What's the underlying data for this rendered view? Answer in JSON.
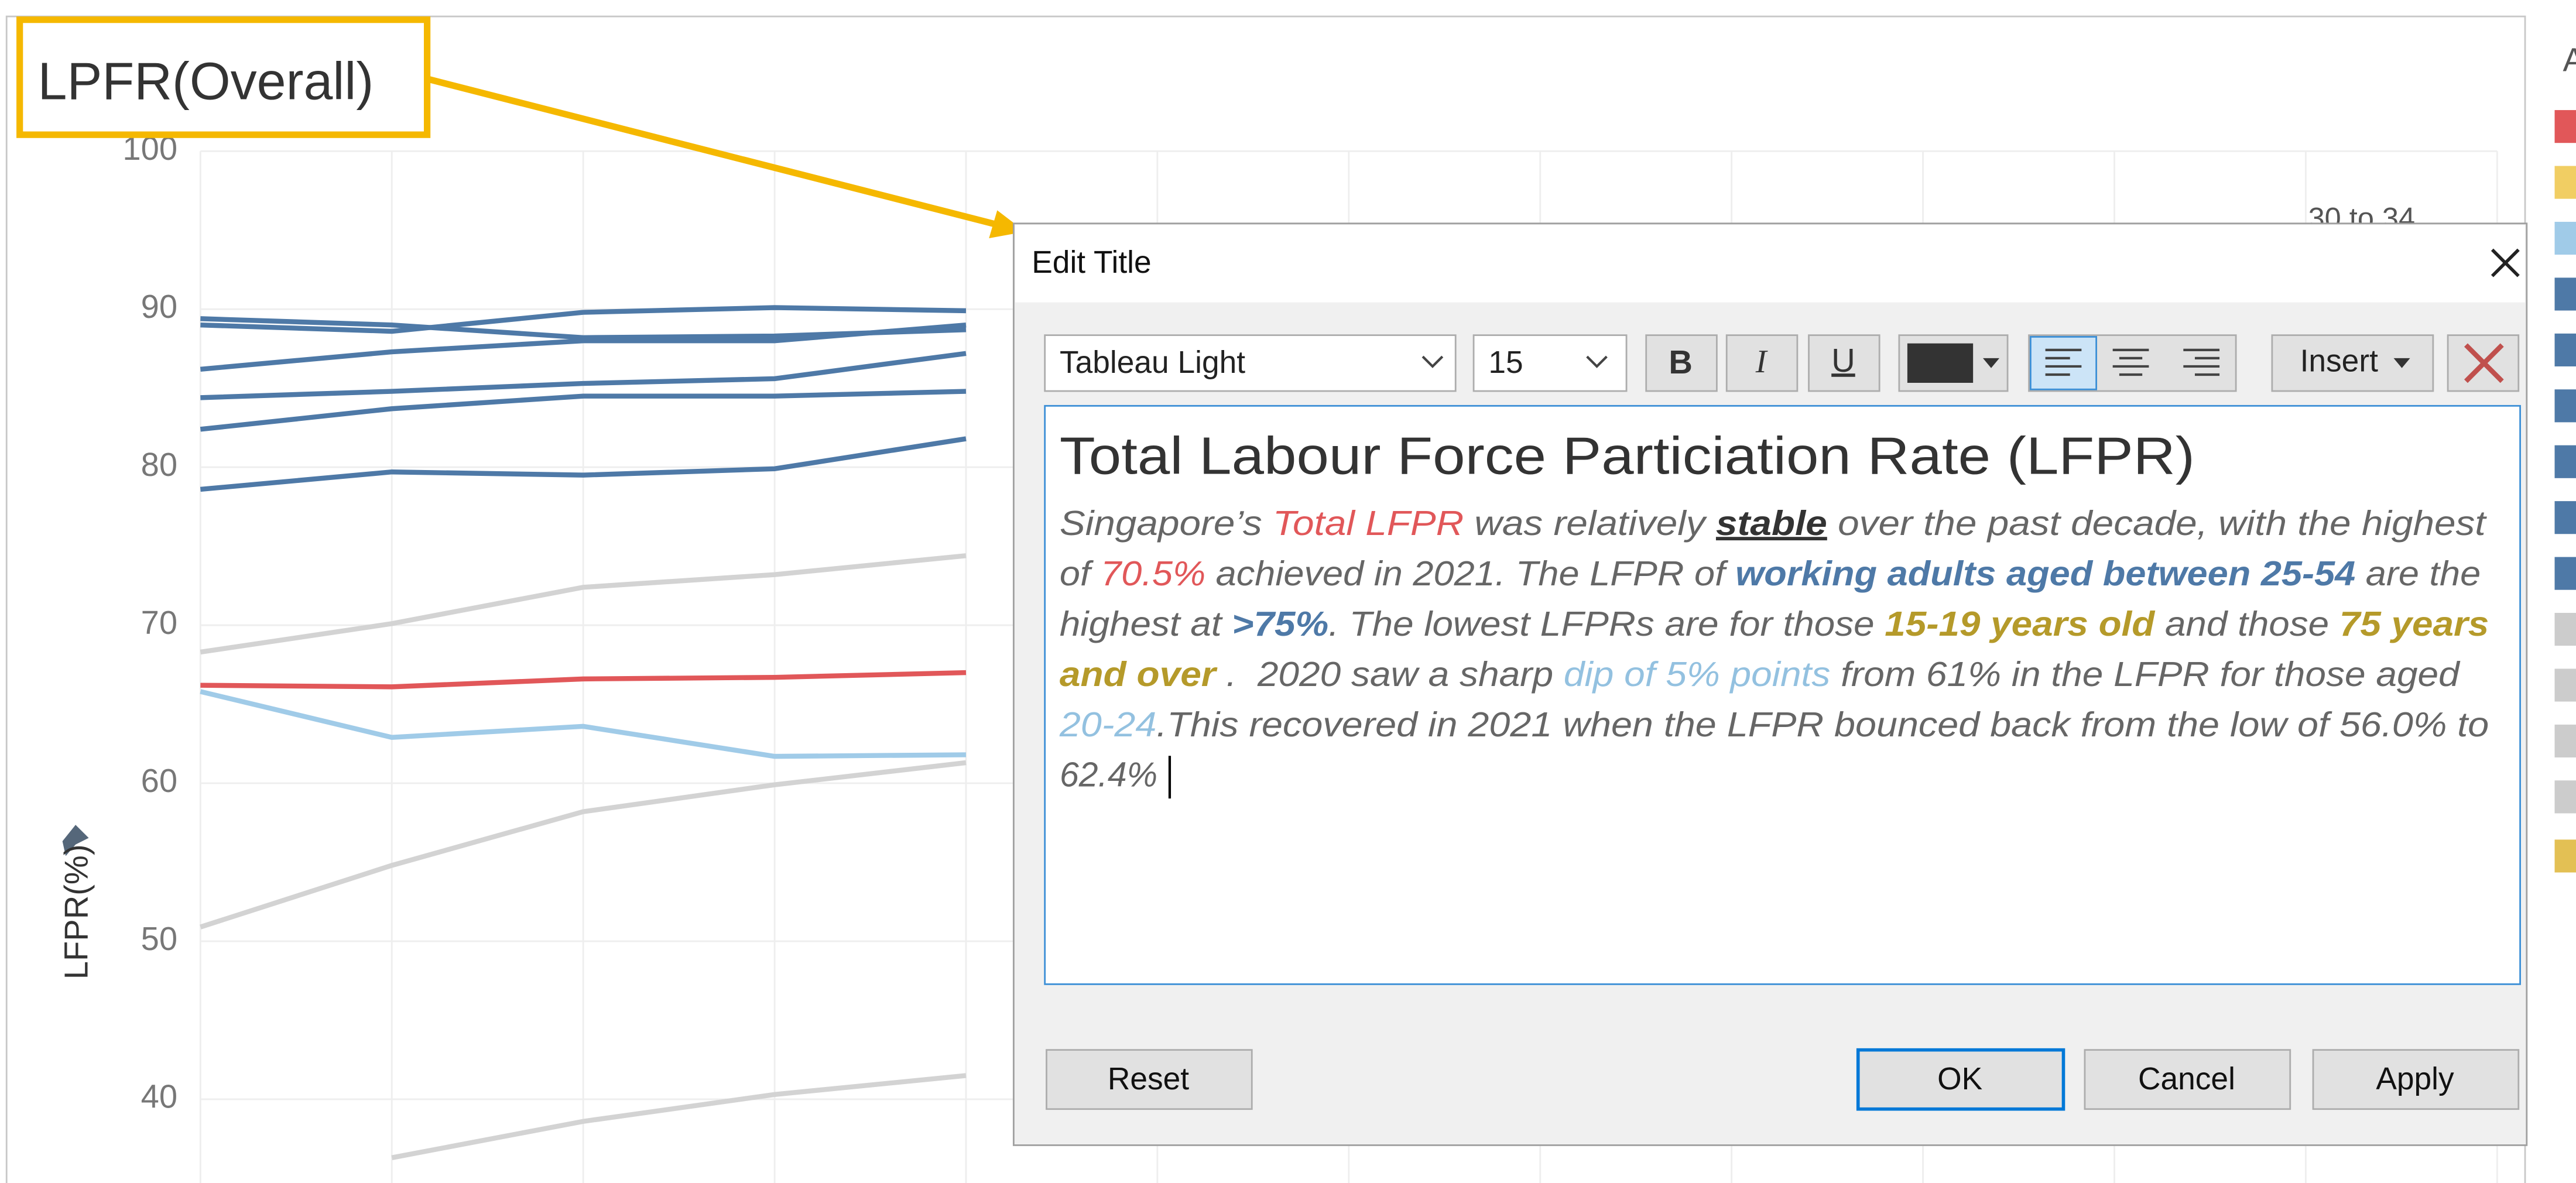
{
  "chart": {
    "title": "LPFR(Overall)",
    "y_label": "LFPR(%)",
    "legend_title": "A",
    "legend_entry": "30 to 34",
    "categories": [
      null,
      null,
      null,
      null,
      null
    ],
    "ylim": [
      34.7,
      100
    ],
    "yticks": [
      40,
      50,
      60,
      70,
      80,
      90,
      100
    ],
    "grid": true,
    "series": [
      {
        "color": "#4e79a7",
        "values": [
          89.4,
          89.0,
          88.2,
          88.3,
          88.7
        ]
      },
      {
        "color": "#4e79a7",
        "values": [
          89.0,
          88.6,
          89.8,
          90.1,
          89.9
        ]
      },
      {
        "color": "#4e79a7",
        "values": [
          86.2,
          87.3,
          88.0,
          88.0,
          89.0
        ]
      },
      {
        "color": "#4e79a7",
        "values": [
          84.4,
          84.8,
          85.3,
          85.6,
          87.2
        ]
      },
      {
        "color": "#4e79a7",
        "values": [
          82.4,
          83.7,
          84.5,
          84.5,
          84.8
        ]
      },
      {
        "color": "#4e79a7",
        "values": [
          78.6,
          79.7,
          79.5,
          79.9,
          81.8
        ]
      },
      {
        "color": "#d3d3d3",
        "values": [
          68.3,
          70.1,
          72.4,
          73.2,
          74.4
        ]
      },
      {
        "color": "#e15759",
        "values": [
          66.2,
          66.1,
          66.6,
          66.7,
          67.0
        ]
      },
      {
        "color": "#a0cbe8",
        "values": [
          65.8,
          62.9,
          63.6,
          61.7,
          61.8
        ]
      },
      {
        "color": "#d3d3d3",
        "values": [
          50.9,
          54.8,
          58.2,
          59.9,
          61.3
        ]
      },
      {
        "color": "#d3d3d3",
        "values": [
          null,
          36.3,
          38.6,
          40.3,
          41.5
        ]
      }
    ]
  },
  "dialog": {
    "title": "Edit Title",
    "font": "Tableau Light",
    "size": "15",
    "bold": "B",
    "italic": "I",
    "underline": "U",
    "insert": "Insert",
    "heading": "Total Labour Force Particiation Rate (LFPR)",
    "lines": [
      [
        {
          "text": "Singapore’s ",
          "color": "#666666"
        },
        {
          "text": "Total LFPR",
          "color": "#e15759"
        },
        {
          "text": " was relatively ",
          "color": "#666666"
        },
        {
          "text": "stable",
          "color": "#333333",
          "bold": true,
          "underline": true
        },
        {
          "text": " over the past decade, with the highest",
          "color": "#666666"
        }
      ],
      [
        {
          "text": "of ",
          "color": "#666666"
        },
        {
          "text": "70.5%",
          "color": "#e15759"
        },
        {
          "text": " achieved in 2021. The LFPR of ",
          "color": "#666666"
        },
        {
          "text": "working adults aged between 25-54",
          "color": "#4e79a7",
          "bold": true
        },
        {
          "text": " are the",
          "color": "#666666"
        }
      ],
      [
        {
          "text": "highest at ",
          "color": "#666666"
        },
        {
          "text": ">75%",
          "color": "#4e79a7",
          "bold": true
        },
        {
          "text": ". The lowest LFPRs are for those ",
          "color": "#666666"
        },
        {
          "text": "15-19 years old",
          "color": "#b59a2a",
          "bold": true
        },
        {
          "text": " and those ",
          "color": "#666666"
        },
        {
          "text": "75 years",
          "color": "#b59a2a",
          "bold": true
        }
      ],
      [
        {
          "text": "and over",
          "color": "#b59a2a",
          "bold": true
        },
        {
          "text": " .  2020 saw a sharp ",
          "color": "#666666"
        },
        {
          "text": "dip of 5% points",
          "color": "#93c1e0"
        },
        {
          "text": " from 61% in the LFPR for those aged",
          "color": "#666666"
        }
      ],
      [
        {
          "text": "20-24",
          "color": "#93c1e0"
        },
        {
          "text": ".This recovered in 2021 when the LFPR bounced back from the low of 56.0% to",
          "color": "#666666"
        }
      ],
      [
        {
          "text": "62.4%",
          "color": "#666666"
        }
      ]
    ],
    "buttons": {
      "reset": "Reset",
      "ok": "OK",
      "cancel": "Cancel",
      "apply": "Apply"
    }
  }
}
